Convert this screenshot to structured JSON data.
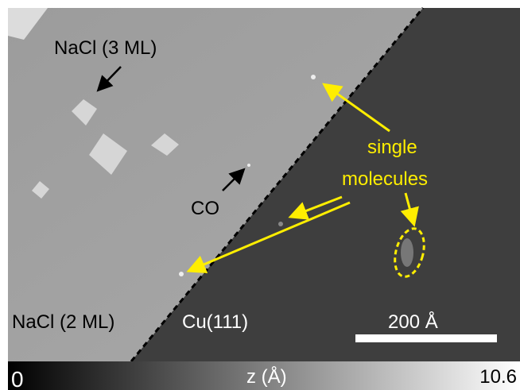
{
  "labels": {
    "nacl_3ml": "NaCl (3 ML)",
    "co": "CO",
    "nacl_2ml": "NaCl (2 ML)",
    "cu": "Cu(111)",
    "single": "single",
    "molecules": "molecules"
  },
  "scale_bar": "200 Å",
  "colorbar": {
    "min": 0,
    "label": "z (Å)",
    "max": 10.6
  }
}
